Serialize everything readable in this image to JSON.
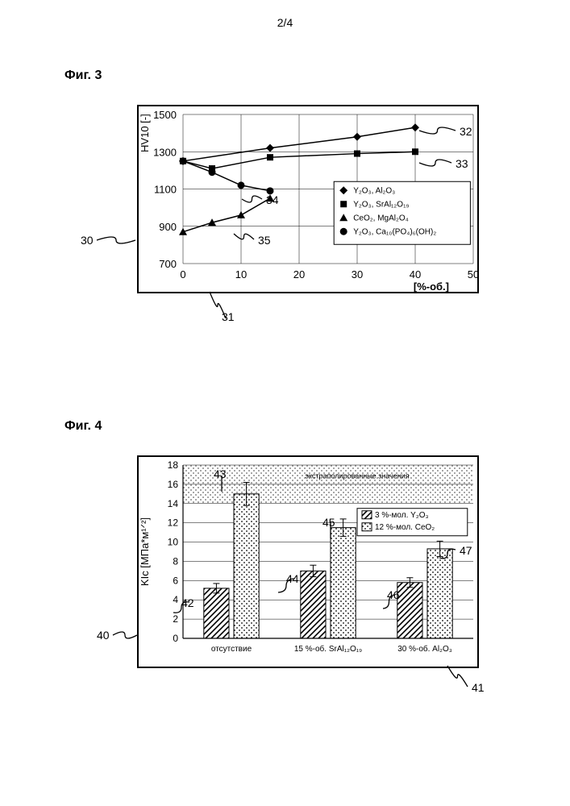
{
  "page_number": "2/4",
  "fig3": {
    "label": "Фиг. 3",
    "ylabel": "HV10 [-]",
    "xlabel": "[%-об.]",
    "ylim": [
      700,
      1500
    ],
    "yticks": [
      700,
      900,
      1100,
      1300,
      1500
    ],
    "xlim": [
      0,
      50
    ],
    "xticks": [
      0,
      10,
      20,
      30,
      40,
      50
    ],
    "label_fontsize": 13,
    "tick_fontsize": 13,
    "grid_color": "#000000",
    "background": "#ffffff",
    "series": [
      {
        "name": "Y₂O₃, Al₂O₃",
        "legend": "Y2O3, Al2O3",
        "marker": "diamond",
        "color": "#000000",
        "points": [
          [
            0,
            1250
          ],
          [
            15,
            1320
          ],
          [
            30,
            1380
          ],
          [
            40,
            1430
          ]
        ]
      },
      {
        "name": "Y₂O₃, SrAl₁₂O₁₉",
        "legend": "Y2O3, SrAl12O19",
        "marker": "square",
        "color": "#000000",
        "points": [
          [
            0,
            1250
          ],
          [
            5,
            1210
          ],
          [
            15,
            1270
          ],
          [
            30,
            1290
          ],
          [
            40,
            1300
          ]
        ]
      },
      {
        "name": "CeO₂, MgAl₂O₄",
        "legend": "CeO2, MgAl2O4",
        "marker": "triangle",
        "color": "#000000",
        "points": [
          [
            0,
            870
          ],
          [
            5,
            920
          ],
          [
            10,
            960
          ],
          [
            15,
            1050
          ]
        ]
      },
      {
        "name": "Y₂O₃, Ca₁₀(PO₄)₆(OH)₂",
        "legend": "Y2O3, Ca10(PO4)6(OH)2",
        "marker": "circle",
        "color": "#000000",
        "points": [
          [
            0,
            1250
          ],
          [
            5,
            1190
          ],
          [
            10,
            1120
          ],
          [
            15,
            1090
          ]
        ]
      }
    ],
    "callouts": {
      "30": "30",
      "31": "31",
      "32": "32",
      "33": "33",
      "34": "34",
      "35": "35"
    }
  },
  "fig4": {
    "label": "Фиг. 4",
    "ylabel": "KIc [МПа*м^1/2]",
    "ylabel_plain": "KIc [МПа*м1/2]",
    "ylim": [
      0,
      18
    ],
    "yticks": [
      0,
      2,
      4,
      6,
      8,
      10,
      12,
      14,
      16,
      18
    ],
    "categories": [
      "отсутствие",
      "15 %-об. SrAl₁₂O₁₉",
      "30 %-об. Al₂O₃"
    ],
    "categories_plain": [
      "отсутствие",
      "15 %-об. SrAl12O19",
      "30 %-об. Al2O3"
    ],
    "extrapolated_label": "экстраполированные значения",
    "extrapolated_band": [
      14,
      18
    ],
    "legend": [
      {
        "label": "3 %-мол. Y₂O₃",
        "label_plain": "3 %-мол. Y2O3",
        "pattern": "hatch",
        "color": "#000000"
      },
      {
        "label": "12 %-мол. CeO₂",
        "label_plain": "12 %-мол. CeO2",
        "pattern": "dots",
        "color": "#000000"
      }
    ],
    "bars": [
      {
        "group": 0,
        "series": 0,
        "value": 5.2,
        "err": 0.5
      },
      {
        "group": 0,
        "series": 1,
        "value": 15.0,
        "err": 1.2
      },
      {
        "group": 1,
        "series": 0,
        "value": 7.0,
        "err": 0.6
      },
      {
        "group": 1,
        "series": 1,
        "value": 11.5,
        "err": 0.9
      },
      {
        "group": 2,
        "series": 0,
        "value": 5.8,
        "err": 0.5
      },
      {
        "group": 2,
        "series": 1,
        "value": 9.3,
        "err": 0.8
      }
    ],
    "callouts": {
      "40": "40",
      "41": "41",
      "42": "42",
      "43": "43",
      "44": "44",
      "45": "45",
      "46": "46",
      "47": "47"
    },
    "grid_color": "#000000",
    "background": "#ffffff",
    "label_fontsize": 13,
    "tick_fontsize": 12
  }
}
